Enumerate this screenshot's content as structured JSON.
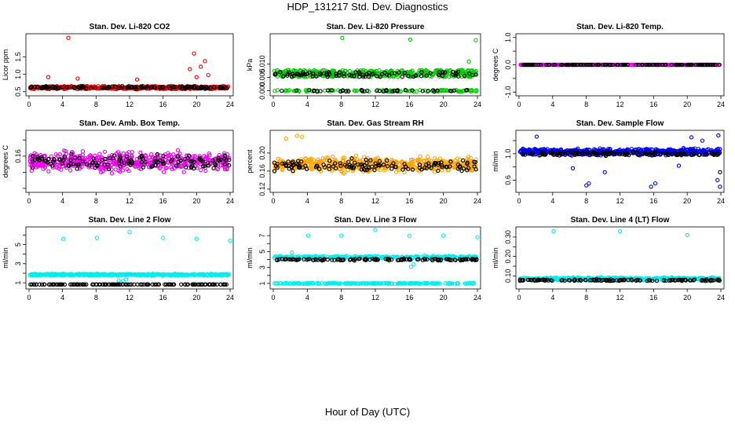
{
  "title": "HDP_131217  Std. Dev. Diagnostics",
  "xlabel": "Hour of Day (UTC)",
  "colors": {
    "red": "#ee0000",
    "green": "#00cc00",
    "magenta": "#ee00ee",
    "orange": "#ffa500",
    "blue": "#0000ee",
    "cyan": "#00eeee",
    "black": "#000000"
  },
  "chart_data": [
    {
      "type": "scatter",
      "title": "Stan. Dev. Li-820 CO2",
      "ylabel": "Licor ppm",
      "xlim": [
        0,
        24
      ],
      "ylim": [
        0.45,
        2.1
      ],
      "xticks": [
        0,
        4,
        8,
        12,
        16,
        20,
        24
      ],
      "yticks": [
        0.5,
        1.0,
        1.5
      ],
      "ytick_labels": [
        "0.5",
        "1.0",
        "1.5"
      ],
      "series": [
        {
          "color": "red",
          "base": 0.62,
          "spread": 0.06,
          "outliers": [
            [
              4.7,
              2.05
            ],
            [
              19.2,
              1.15
            ],
            [
              19.7,
              1.6
            ],
            [
              20.5,
              1.22
            ],
            [
              21.0,
              1.38
            ],
            [
              21.4,
              0.98
            ],
            [
              20.0,
              0.92
            ],
            [
              12.9,
              0.85
            ],
            [
              2.3,
              0.92
            ],
            [
              5.8,
              0.88
            ]
          ]
        },
        {
          "color": "black",
          "base": 0.62,
          "spread": 0.05,
          "outliers": []
        }
      ]
    },
    {
      "type": "scatter",
      "title": "Stan. Dev. Li-820 Pressure",
      "ylabel": "kPa",
      "xlim": [
        0,
        24
      ],
      "ylim": [
        -0.001,
        0.0205
      ],
      "xticks": [
        0,
        4,
        8,
        12,
        16,
        20,
        24
      ],
      "yticks": [
        0.0,
        0.005,
        0.01
      ],
      "ytick_labels": [
        "0.000",
        "0.005",
        "0.010"
      ],
      "series": [
        {
          "color": "green",
          "levels": [
            0.0,
            0.0055,
            0.0062,
            0.0068,
            0.0075
          ],
          "outliers": [
            [
              8.1,
              0.0198
            ],
            [
              16.1,
              0.0192
            ],
            [
              23.8,
              0.019
            ],
            [
              23.0,
              0.011
            ]
          ]
        },
        {
          "color": "black",
          "levels": [
            0.0,
            0.0055,
            0.0062,
            0.0068
          ],
          "outliers": []
        }
      ]
    },
    {
      "type": "scatter",
      "title": "Stan. Dev. Li-820 Temp.",
      "ylabel": "degrees C",
      "xlim": [
        0,
        24
      ],
      "ylim": [
        -1.05,
        1.05
      ],
      "xticks": [
        0,
        4,
        8,
        12,
        16,
        20,
        24
      ],
      "yticks": [
        -1.0,
        -0.5,
        0.0,
        0.5,
        1.0
      ],
      "ytick_labels": [
        "-1.0",
        "",
        "0.0",
        "",
        "1.0"
      ],
      "series": [
        {
          "color": "magenta",
          "base": 0.0,
          "spread": 0.0,
          "outliers": []
        },
        {
          "color": "black",
          "base": 0.0,
          "spread": 0.0,
          "outliers": []
        }
      ]
    },
    {
      "type": "scatter",
      "title": "Stan. Dev. Amb. Box Temp.",
      "ylabel": "degrees C",
      "xlim": [
        0,
        24
      ],
      "ylim": [
        0.118,
        0.189
      ],
      "xticks": [
        0,
        4,
        8,
        12,
        16,
        20,
        24
      ],
      "yticks": [
        0.12,
        0.14,
        0.16,
        0.18
      ],
      "ytick_labels": [
        "",
        "",
        "0.16",
        ""
      ],
      "series": [
        {
          "color": "magenta",
          "base": 0.153,
          "spread": 0.016,
          "outliers": []
        },
        {
          "color": "black",
          "base": 0.153,
          "spread": 0.013,
          "outliers": []
        }
      ]
    },
    {
      "type": "scatter",
      "title": "Stan. Dev. Gas Stream RH",
      "ylabel": "percent",
      "xlim": [
        0,
        24
      ],
      "ylim": [
        0.118,
        0.245
      ],
      "xticks": [
        0,
        4,
        8,
        12,
        16,
        20,
        24
      ],
      "yticks": [
        0.12,
        0.16,
        0.2
      ],
      "ytick_labels": [
        "0.12",
        "0.16",
        "0.20"
      ],
      "series": [
        {
          "color": "orange",
          "base": 0.175,
          "spread": 0.022,
          "outliers": [
            [
              1.5,
              0.232
            ],
            [
              2.8,
              0.238
            ],
            [
              3.4,
              0.236
            ]
          ]
        },
        {
          "color": "black",
          "base": 0.172,
          "spread": 0.018,
          "outliers": []
        }
      ]
    },
    {
      "type": "scatter",
      "title": "Stan. Dev. Sample Flow",
      "ylabel": "ml/min",
      "xlim": [
        0,
        24
      ],
      "ylim": [
        0.45,
        1.32
      ],
      "xticks": [
        0,
        4,
        8,
        12,
        16,
        20,
        24
      ],
      "yticks": [
        0.6,
        0.8,
        1.0,
        1.2
      ],
      "ytick_labels": [
        "0.6",
        "",
        "1.0",
        ""
      ],
      "series": [
        {
          "color": "blue",
          "base": 1.03,
          "spread": 0.07,
          "outliers": [
            [
              8.0,
              0.52
            ],
            [
              8.3,
              0.55
            ],
            [
              15.7,
              0.5
            ],
            [
              16.2,
              0.55
            ],
            [
              10.2,
              0.72
            ],
            [
              23.9,
              0.5
            ],
            [
              23.6,
              0.6
            ],
            [
              23.7,
              1.28
            ],
            [
              20.5,
              1.25
            ],
            [
              21.8,
              1.2
            ],
            [
              2.1,
              1.26
            ],
            [
              6.4,
              0.78
            ],
            [
              19.0,
              0.82
            ]
          ]
        },
        {
          "color": "black",
          "base": 1.0,
          "spread": 0.04,
          "outliers": [
            [
              23.9,
              0.72
            ]
          ]
        }
      ]
    },
    {
      "type": "scatter",
      "title": "Stan. Dev. Line 2 Flow",
      "ylabel": "ml/min",
      "xlim": [
        0,
        24
      ],
      "ylim": [
        0.6,
        6.6
      ],
      "xticks": [
        0,
        4,
        8,
        12,
        16,
        20,
        24
      ],
      "yticks": [
        1,
        2,
        3,
        4,
        5,
        6
      ],
      "ytick_labels": [
        "1",
        "",
        "3",
        "",
        "5",
        ""
      ],
      "series": [
        {
          "color": "cyan",
          "base": 1.85,
          "spread": 0.12,
          "outliers": [
            [
              4.1,
              5.6
            ],
            [
              8.1,
              5.7
            ],
            [
              12.0,
              6.3
            ],
            [
              16.0,
              5.7
            ],
            [
              20.0,
              5.6
            ],
            [
              24.0,
              5.4
            ],
            [
              10.7,
              1.25
            ],
            [
              11.2,
              1.2
            ],
            [
              11.6,
              1.35
            ]
          ]
        },
        {
          "color": "black",
          "base": 0.82,
          "spread": 0.0,
          "outliers": []
        }
      ]
    },
    {
      "type": "scatter",
      "title": "Stan. Dev. Line 3 Flow",
      "ylabel": "ml/min",
      "xlim": [
        0,
        24
      ],
      "ylim": [
        0.6,
        7.8
      ],
      "xticks": [
        0,
        4,
        8,
        12,
        16,
        20,
        24
      ],
      "yticks": [
        1,
        2,
        3,
        4,
        5,
        6,
        7
      ],
      "ytick_labels": [
        "1",
        "",
        "3",
        "",
        "5",
        "",
        "7"
      ],
      "series": [
        {
          "color": "cyan",
          "base": 4.3,
          "spread": 0.2,
          "low_band": 1.0,
          "outliers": [
            [
              4.1,
              7.0
            ],
            [
              8.0,
              7.0
            ],
            [
              12.0,
              7.7
            ],
            [
              16.0,
              7.0
            ],
            [
              20.0,
              7.0
            ],
            [
              24.0,
              6.8
            ],
            [
              16.2,
              3.1
            ],
            [
              16.5,
              3.4
            ],
            [
              2.2,
              4.9
            ]
          ]
        },
        {
          "color": "black",
          "base": 4.0,
          "spread": 0.18,
          "outliers": []
        }
      ]
    },
    {
      "type": "scatter",
      "title": "Stan. Dev. Line 4 (LT) Flow",
      "ylabel": "ml/min",
      "xlim": [
        0,
        24
      ],
      "ylim": [
        0.045,
        0.34
      ],
      "xticks": [
        0,
        4,
        8,
        12,
        16,
        20,
        24
      ],
      "yticks": [
        0.1,
        0.15,
        0.2,
        0.25,
        0.3
      ],
      "ytick_labels": [
        "0.10",
        "",
        "0.20",
        "",
        "0.30"
      ],
      "series": [
        {
          "color": "cyan",
          "base": 0.085,
          "spread": 0.01,
          "outliers": [
            [
              4.1,
              0.33
            ],
            [
              12.0,
              0.33
            ],
            [
              20.0,
              0.31
            ]
          ]
        },
        {
          "color": "black",
          "base": 0.078,
          "spread": 0.006,
          "outliers": []
        }
      ]
    }
  ]
}
